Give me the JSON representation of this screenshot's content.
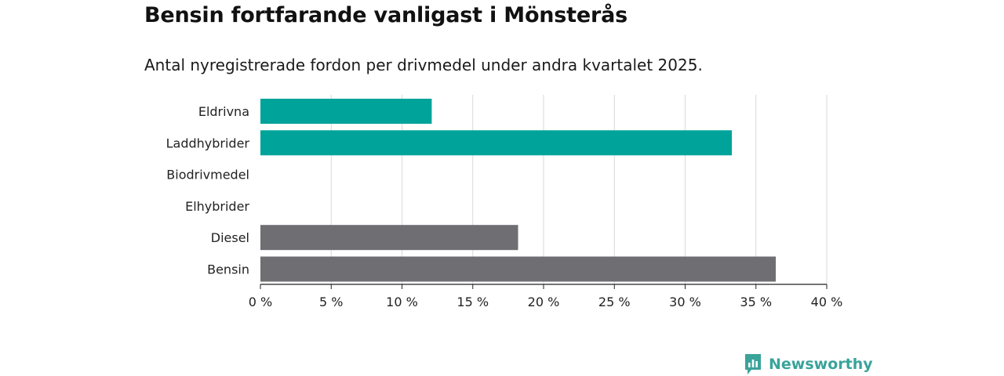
{
  "title": "Bensin fortfarande vanligast i Mönsterås",
  "subtitle": "Antal nyregistrerade fordon per drivmedel under andra kvartalet 2025.",
  "brand": {
    "name": "Newsworthy",
    "icon": "newsworthy-logo-icon",
    "color": "#3aa39a"
  },
  "chart_data": {
    "type": "bar",
    "orientation": "horizontal",
    "categories": [
      "Eldrivna",
      "Laddhybrider",
      "Biodrivmedel",
      "Elhybrider",
      "Diesel",
      "Bensin"
    ],
    "values": [
      12.1,
      33.3,
      0,
      0,
      18.2,
      36.4
    ],
    "colors": [
      "#00a39a",
      "#00a39a",
      "#00a39a",
      "#00a39a",
      "#6e6e73",
      "#6e6e73"
    ],
    "xlim": [
      0,
      40
    ],
    "xticks": [
      0,
      5,
      10,
      15,
      20,
      25,
      30,
      35,
      40
    ],
    "tick_suffix": " %",
    "grid": true,
    "title": "Bensin fortfarande vanligast i Mönsterås",
    "subtitle": "Antal nyregistrerade fordon per drivmedel under andra kvartalet 2025.",
    "xlabel": "",
    "ylabel": ""
  }
}
